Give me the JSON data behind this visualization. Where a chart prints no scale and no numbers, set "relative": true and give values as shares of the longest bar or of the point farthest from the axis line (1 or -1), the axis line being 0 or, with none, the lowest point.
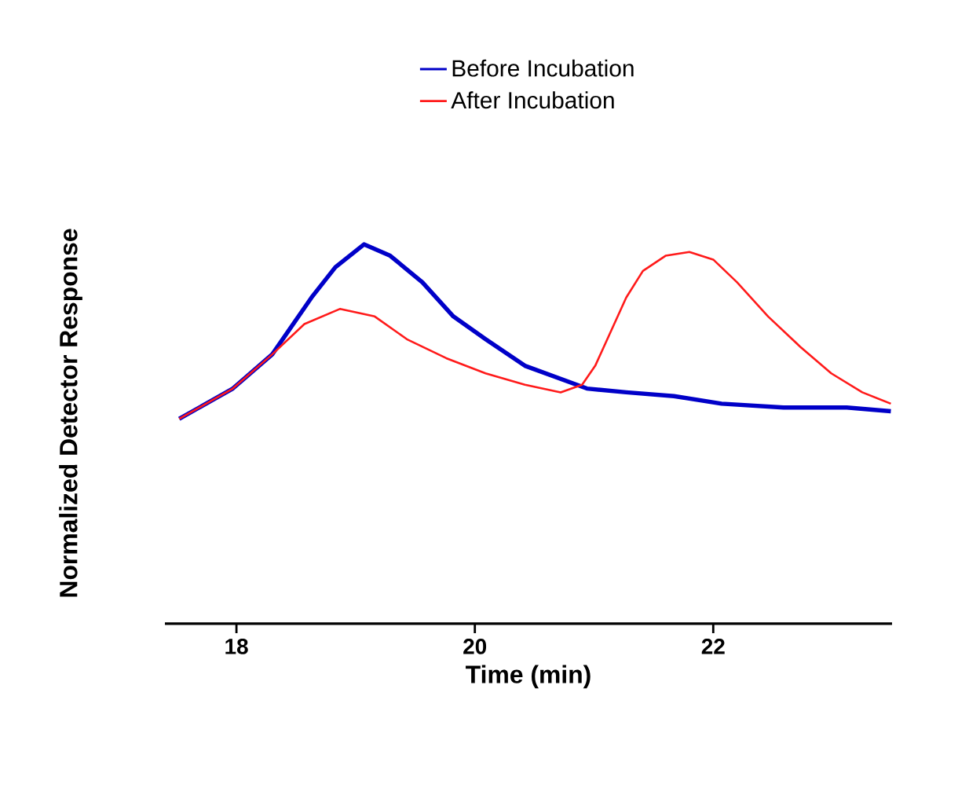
{
  "chart_data": {
    "type": "line",
    "relative": true,
    "xlabel": "Time (min)",
    "ylabel": "Normalized Detector Response",
    "xlim": [
      17.4,
      23.5
    ],
    "xticks": [
      18,
      20,
      22
    ],
    "legend": "top",
    "line_style": "solid",
    "marker": "none",
    "series": [
      {
        "name": "Before Incubation",
        "color": "#0000c8",
        "x": [
          17.52,
          17.97,
          18.3,
          18.63,
          18.83,
          19.07,
          19.29,
          19.56,
          19.82,
          20.09,
          20.42,
          20.68,
          20.94,
          21.27,
          21.67,
          22.07,
          22.59,
          23.12,
          23.49
        ],
        "values": [
          0.54,
          0.62,
          0.71,
          0.86,
          0.94,
          1.0,
          0.97,
          0.9,
          0.81,
          0.75,
          0.68,
          0.65,
          0.62,
          0.61,
          0.6,
          0.58,
          0.57,
          0.57,
          0.56
        ]
      },
      {
        "name": "After Incubation",
        "color": "#ff1a1a",
        "x": [
          17.52,
          17.97,
          18.3,
          18.57,
          18.87,
          19.16,
          19.43,
          19.76,
          20.09,
          20.42,
          20.72,
          20.9,
          21.01,
          21.14,
          21.27,
          21.41,
          21.6,
          21.8,
          22.0,
          22.2,
          22.46,
          22.73,
          22.99,
          23.25,
          23.49
        ],
        "values": [
          0.54,
          0.62,
          0.71,
          0.79,
          0.83,
          0.81,
          0.75,
          0.7,
          0.66,
          0.63,
          0.61,
          0.63,
          0.68,
          0.77,
          0.86,
          0.93,
          0.97,
          0.98,
          0.96,
          0.9,
          0.81,
          0.73,
          0.66,
          0.61,
          0.58
        ]
      }
    ]
  }
}
